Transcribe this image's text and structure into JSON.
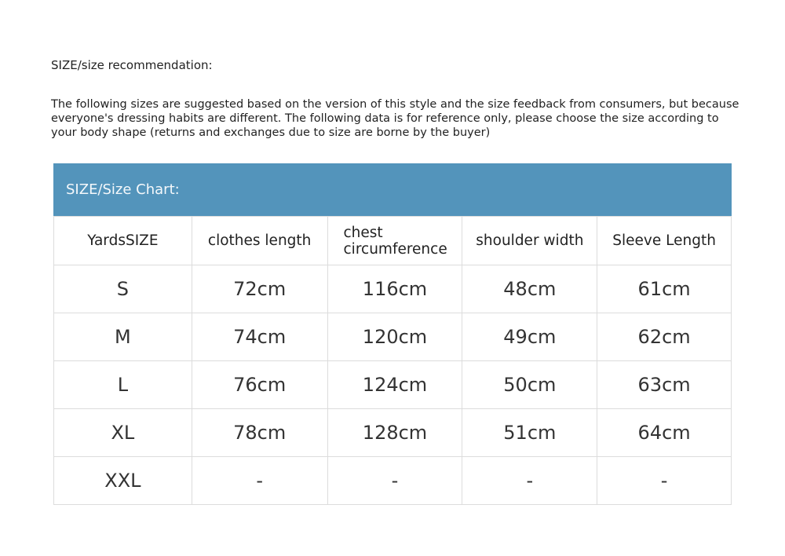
{
  "title": "SIZE/size recommendation:",
  "description": "The following sizes are suggested based on the version of this style and the size feedback from consumers, but because everyone's dressing habits are different. The following data is for reference only, please choose the size according to your body shape (returns and exchanges due to size are borne by the buyer)",
  "chart": {
    "heading": "SIZE/Size Chart:",
    "header_color": "#5394bb",
    "columns": [
      "YardsSIZE",
      "clothes length",
      "chest circumference",
      "shoulder width",
      "Sleeve Length"
    ],
    "rows": [
      [
        "S",
        "72cm",
        "116cm",
        "48cm",
        "61cm"
      ],
      [
        "M",
        "74cm",
        "120cm",
        "49cm",
        "62cm"
      ],
      [
        "L",
        "76cm",
        "124cm",
        "50cm",
        "63cm"
      ],
      [
        "XL",
        "78cm",
        "128cm",
        "51cm",
        "64cm"
      ],
      [
        "XXL",
        "-",
        "-",
        "-",
        "-"
      ]
    ]
  }
}
